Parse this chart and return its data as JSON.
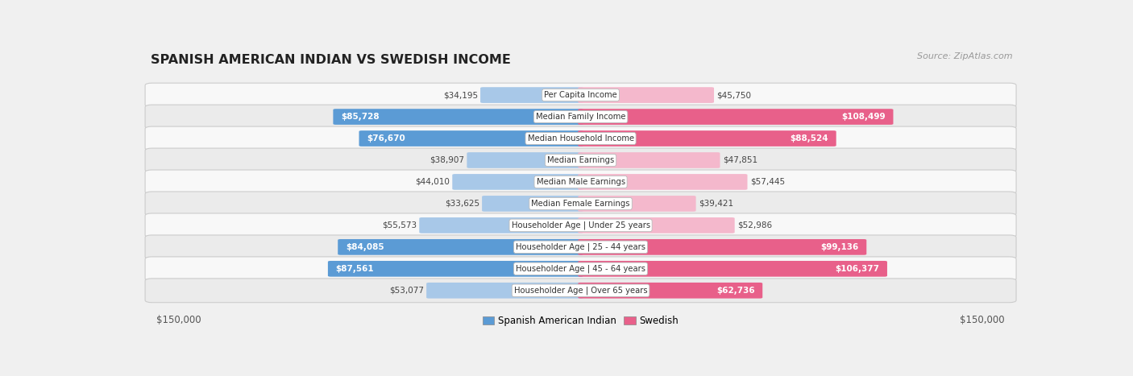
{
  "title": "SPANISH AMERICAN INDIAN VS SWEDISH INCOME",
  "source": "Source: ZipAtlas.com",
  "categories": [
    "Per Capita Income",
    "Median Family Income",
    "Median Household Income",
    "Median Earnings",
    "Median Male Earnings",
    "Median Female Earnings",
    "Householder Age | Under 25 years",
    "Householder Age | 25 - 44 years",
    "Householder Age | 45 - 64 years",
    "Householder Age | Over 65 years"
  ],
  "left_values": [
    34195,
    85728,
    76670,
    38907,
    44010,
    33625,
    55573,
    84085,
    87561,
    53077
  ],
  "right_values": [
    45750,
    108499,
    88524,
    47851,
    57445,
    39421,
    52986,
    99136,
    106377,
    62736
  ],
  "left_labels": [
    "$34,195",
    "$85,728",
    "$76,670",
    "$38,907",
    "$44,010",
    "$33,625",
    "$55,573",
    "$84,085",
    "$87,561",
    "$53,077"
  ],
  "right_labels": [
    "$45,750",
    "$108,499",
    "$88,524",
    "$47,851",
    "$57,445",
    "$39,421",
    "$52,986",
    "$99,136",
    "$106,377",
    "$62,736"
  ],
  "left_color_light": "#a8c8e8",
  "left_color_dark": "#5b9bd5",
  "right_color_light": "#f4b8cc",
  "right_color_dark": "#e8608a",
  "max_value": 150000,
  "left_axis_label": "$150,000",
  "right_axis_label": "$150,000",
  "legend_left": "Spanish American Indian",
  "legend_right": "Swedish",
  "bg_color": "#f0f0f0",
  "row_color_odd": "#f8f8f8",
  "row_color_even": "#ebebeb",
  "inside_label_threshold": 60000
}
